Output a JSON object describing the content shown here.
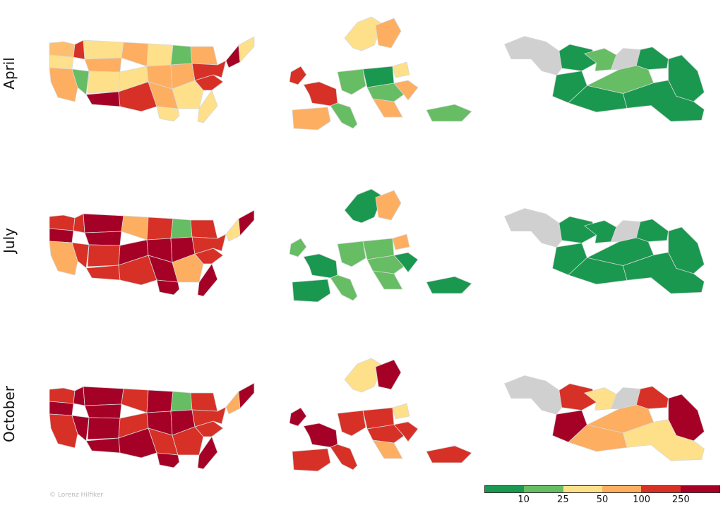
{
  "rows": [
    {
      "label": "April",
      "usa": [
        "#fdbf6f",
        "#fee08b",
        "#fdae61",
        "#66bd63",
        "#d73027",
        "#fee08b",
        "#fdae61",
        "#fee08b",
        "#a50026",
        "#fdae61",
        "#fee08b",
        "#d73027",
        "#fee08b",
        "#fdae61",
        "#fdae61",
        "#fee08b",
        "#66bd63",
        "#fdae61",
        "#fee08b",
        "#d73027",
        "#fee08b",
        "#fdae61",
        "#d73027",
        "#a50026",
        "#fee08b"
      ],
      "europe": [
        "#fee08b",
        "#fdae61",
        "#d73027",
        "#d73027",
        "#fdae61",
        "#66bd63",
        "#66bd63",
        "#1a9850",
        "#66bd63",
        "#fdae61",
        "#fee08b",
        "#fdae61",
        "#66bd63"
      ],
      "georgia": [
        "#d0d0d0",
        "#1a9850",
        "#66bd63",
        "#d0d0d0",
        "#1a9850",
        "#1a9850",
        "#1a9850",
        "#66bd63",
        "#1a9850",
        "#1a9850"
      ]
    },
    {
      "label": "July",
      "usa": [
        "#d73027",
        "#a50026",
        "#fdae61",
        "#d73027",
        "#d73027",
        "#a50026",
        "#a50026",
        "#d73027",
        "#d73027",
        "#fdae61",
        "#a50026",
        "#d73027",
        "#d73027",
        "#a50026",
        "#a50026",
        "#a50026",
        "#66bd63",
        "#a50026",
        "#fdae61",
        "#d73027",
        "#a50026",
        "#d73027",
        "#d73027",
        "#fee08b",
        "#a50026"
      ],
      "europe": [
        "#1a9850",
        "#fdae61",
        "#66bd63",
        "#1a9850",
        "#1a9850",
        "#66bd63",
        "#66bd63",
        "#66bd63",
        "#66bd63",
        "#1a9850",
        "#fdae61",
        "#66bd63",
        "#1a9850"
      ],
      "georgia": [
        "#d0d0d0",
        "#1a9850",
        "#1a9850",
        "#d0d0d0",
        "#1a9850",
        "#1a9850",
        "#1a9850",
        "#1a9850",
        "#1a9850",
        "#1a9850"
      ]
    },
    {
      "label": "October",
      "usa": [
        "#d73027",
        "#a50026",
        "#d73027",
        "#a50026",
        "#a50026",
        "#a50026",
        "#a50026",
        "#a50026",
        "#a50026",
        "#d73027",
        "#d73027",
        "#a50026",
        "#a50026",
        "#a50026",
        "#d73027",
        "#a50026",
        "#66bd63",
        "#a50026",
        "#d73027",
        "#d73027",
        "#a50026",
        "#d73027",
        "#d73027",
        "#fdae61",
        "#a50026"
      ],
      "europe": [
        "#fee08b",
        "#a50026",
        "#a50026",
        "#a50026",
        "#d73027",
        "#d73027",
        "#d73027",
        "#d73027",
        "#d73027",
        "#d73027",
        "#fee08b",
        "#fdae61",
        "#d73027"
      ],
      "georgia": [
        "#d0d0d0",
        "#d73027",
        "#fee08b",
        "#d0d0d0",
        "#d73027",
        "#a50026",
        "#a50026",
        "#fdae61",
        "#fdae61",
        "#fee08b"
      ]
    }
  ],
  "credit": "© Lorenz Hilfiker",
  "legend": {
    "colors": [
      "#1a9850",
      "#66bd63",
      "#fee08b",
      "#fdae61",
      "#d73027",
      "#a50026"
    ],
    "ticks": [
      "10",
      "25",
      "50",
      "100",
      "250"
    ]
  }
}
